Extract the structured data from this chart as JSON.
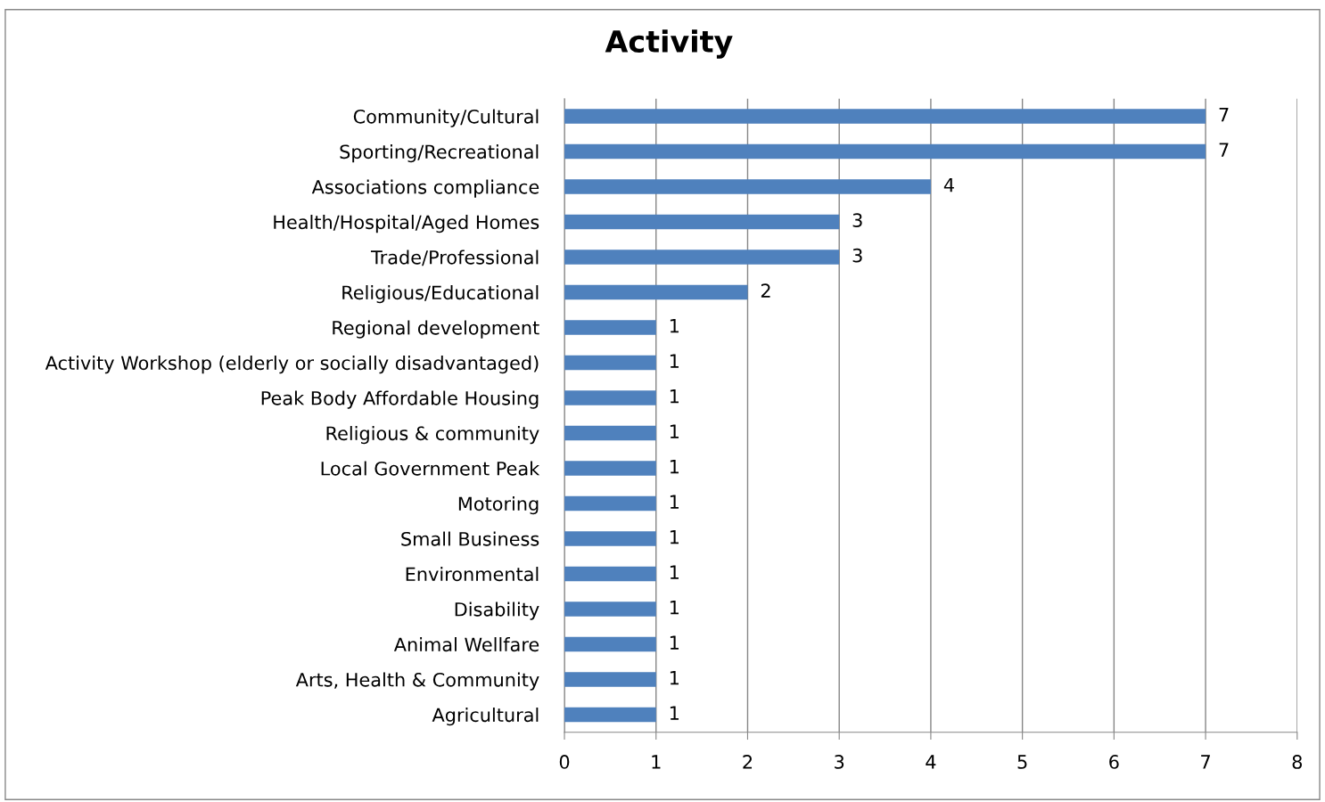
{
  "chart_data": {
    "type": "bar",
    "orientation": "horizontal",
    "title": "Activity",
    "categories": [
      "Community/Cultural",
      "Sporting/Recreational",
      "Associations compliance",
      "Health/Hospital/Aged Homes",
      "Trade/Professional",
      "Religious/Educational",
      "Regional development",
      "Activity Workshop (elderly or socially disadvantaged)",
      "Peak Body Affordable Housing",
      "Religious & community",
      "Local Government Peak",
      "Motoring",
      "Small Business",
      "Environmental",
      "Disability",
      "Animal Wellfare",
      "Arts, Health & Community",
      "Agricultural"
    ],
    "values": [
      7,
      7,
      4,
      3,
      3,
      2,
      1,
      1,
      1,
      1,
      1,
      1,
      1,
      1,
      1,
      1,
      1,
      1
    ],
    "color": "#4f81bd",
    "xlim": [
      0,
      8
    ],
    "xticks": [
      0,
      1,
      2,
      3,
      4,
      5,
      6,
      7,
      8
    ],
    "grid": "x",
    "data_labels": true
  }
}
